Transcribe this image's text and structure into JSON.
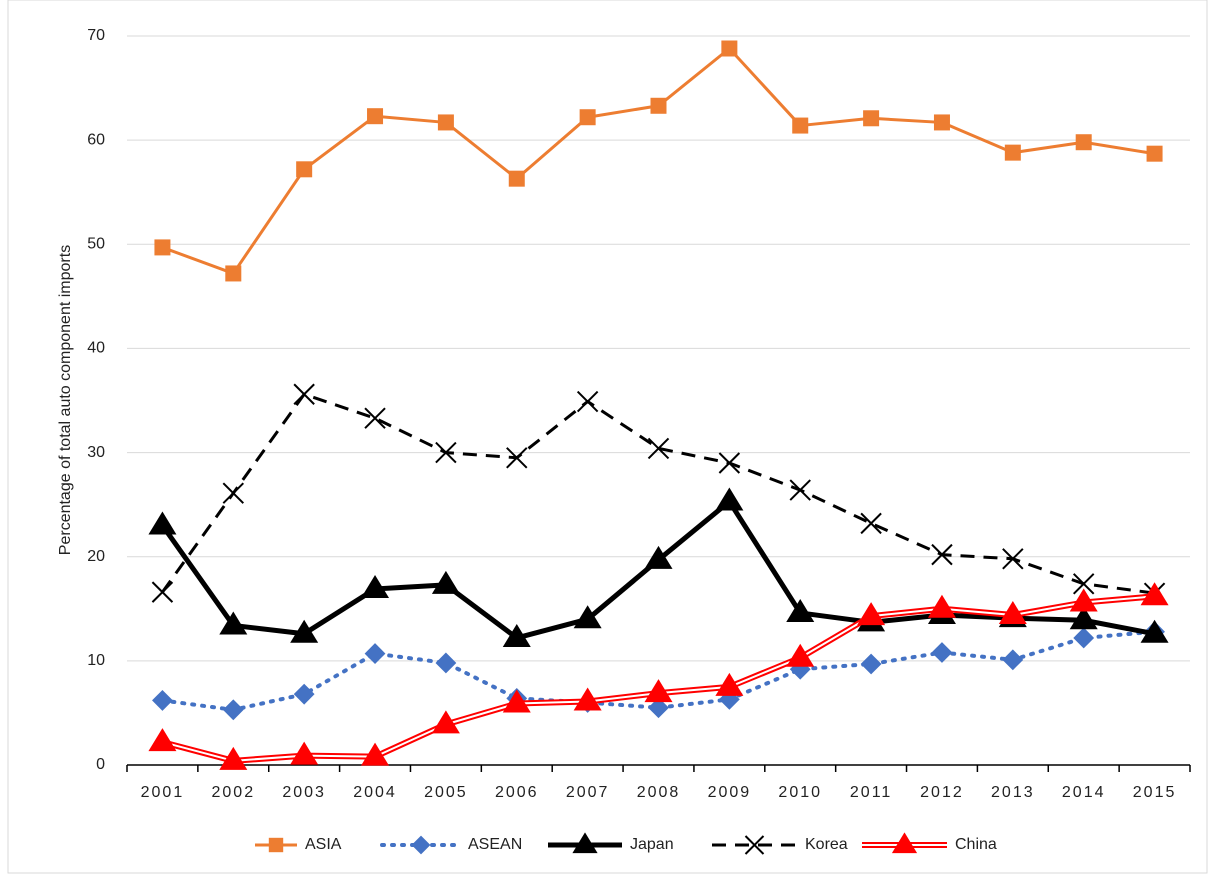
{
  "chart_data": {
    "type": "line",
    "y_label": "Percentage of total auto component imports",
    "categories": [
      "2001",
      "2002",
      "2003",
      "2004",
      "2005",
      "2006",
      "2007",
      "2008",
      "2009",
      "2010",
      "2011",
      "2012",
      "2013",
      "2014",
      "2015"
    ],
    "ylim": [
      0,
      70
    ],
    "yticks": [
      0,
      10,
      20,
      30,
      40,
      50,
      60,
      70
    ],
    "grid": true,
    "legend": "bottom",
    "series": [
      {
        "name": "ASIA",
        "color": "#ed7d31",
        "marker": "square",
        "line_style": "solid",
        "line_width": 3,
        "values": [
          49.7,
          47.2,
          57.2,
          62.3,
          61.7,
          56.3,
          62.2,
          63.3,
          68.8,
          61.4,
          62.1,
          61.7,
          58.8,
          59.8,
          58.7
        ]
      },
      {
        "name": "ASEAN",
        "color": "#4472c4",
        "marker": "diamond",
        "line_style": "dotted",
        "line_width": 4,
        "values": [
          6.2,
          5.3,
          6.8,
          10.7,
          9.8,
          6.4,
          6.0,
          5.5,
          6.3,
          9.2,
          9.7,
          10.8,
          10.1,
          12.2,
          12.8
        ]
      },
      {
        "name": "Japan",
        "color": "#000000",
        "marker": "triangle",
        "line_style": "solid",
        "line_width": 5,
        "values": [
          23.0,
          13.4,
          12.6,
          16.9,
          17.3,
          12.2,
          14.0,
          19.7,
          25.3,
          14.6,
          13.7,
          14.4,
          14.1,
          13.9,
          12.6
        ]
      },
      {
        "name": "Korea",
        "color": "#000000",
        "marker": "x",
        "line_style": "dashed",
        "line_width": 3,
        "values": [
          16.6,
          26.1,
          35.6,
          33.3,
          30.0,
          29.5,
          34.9,
          30.4,
          29.0,
          26.4,
          23.2,
          20.2,
          19.8,
          17.4,
          16.5
        ]
      },
      {
        "name": "China",
        "color": "#ff0000",
        "marker": "triangle",
        "line_style": "double",
        "line_width": 6,
        "values": [
          2.2,
          0.4,
          0.9,
          0.8,
          3.9,
          5.9,
          6.1,
          6.9,
          7.5,
          10.3,
          14.3,
          15.0,
          14.4,
          15.6,
          16.2
        ]
      }
    ]
  }
}
